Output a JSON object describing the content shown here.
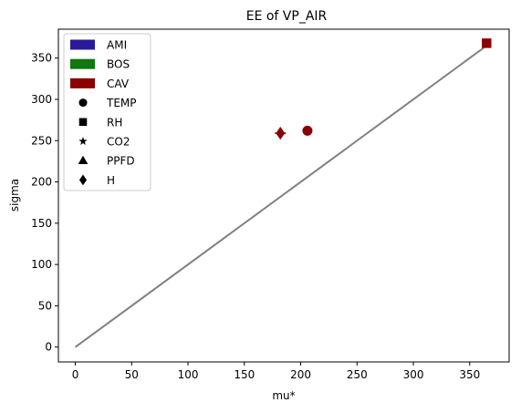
{
  "chart_data": {
    "type": "scatter",
    "title": "EE of VP_AIR",
    "xlabel": "mu*",
    "ylabel": "sigma",
    "xlim": [
      -15,
      385
    ],
    "ylim": [
      -18,
      385
    ],
    "xticks": [
      0,
      50,
      100,
      150,
      200,
      250,
      300,
      350
    ],
    "yticks": [
      0,
      50,
      100,
      150,
      200,
      250,
      300,
      350
    ],
    "grid": false,
    "legend_position": "upper-left",
    "reference_line": {
      "x": [
        0,
        368
      ],
      "y": [
        0,
        368
      ],
      "color": "#808080"
    },
    "legend": {
      "colors": [
        {
          "name": "AMI",
          "color": "#2a1a9a"
        },
        {
          "name": "BOS",
          "color": "#117711"
        },
        {
          "name": "CAV",
          "color": "#8b0000"
        }
      ],
      "markers": [
        {
          "name": "TEMP",
          "marker": "circle"
        },
        {
          "name": "RH",
          "marker": "square"
        },
        {
          "name": "CO2",
          "marker": "star"
        },
        {
          "name": "PPFD",
          "marker": "triangle"
        },
        {
          "name": "H",
          "marker": "diamond"
        }
      ]
    },
    "points": [
      {
        "site": "CAV",
        "variable": "TEMP",
        "marker": "circle",
        "color": "#8b0000",
        "x": 206,
        "y": 262,
        "xerr": 3,
        "yerr": 2
      },
      {
        "site": "CAV",
        "variable": "RH",
        "marker": "square",
        "color": "#8b0000",
        "x": 365,
        "y": 368,
        "xerr": 3,
        "yerr": 2
      },
      {
        "site": "CAV",
        "variable": "H",
        "marker": "diamond",
        "color": "#8b0000",
        "x": 182,
        "y": 259,
        "xerr": 5,
        "yerr": 2
      }
    ]
  }
}
